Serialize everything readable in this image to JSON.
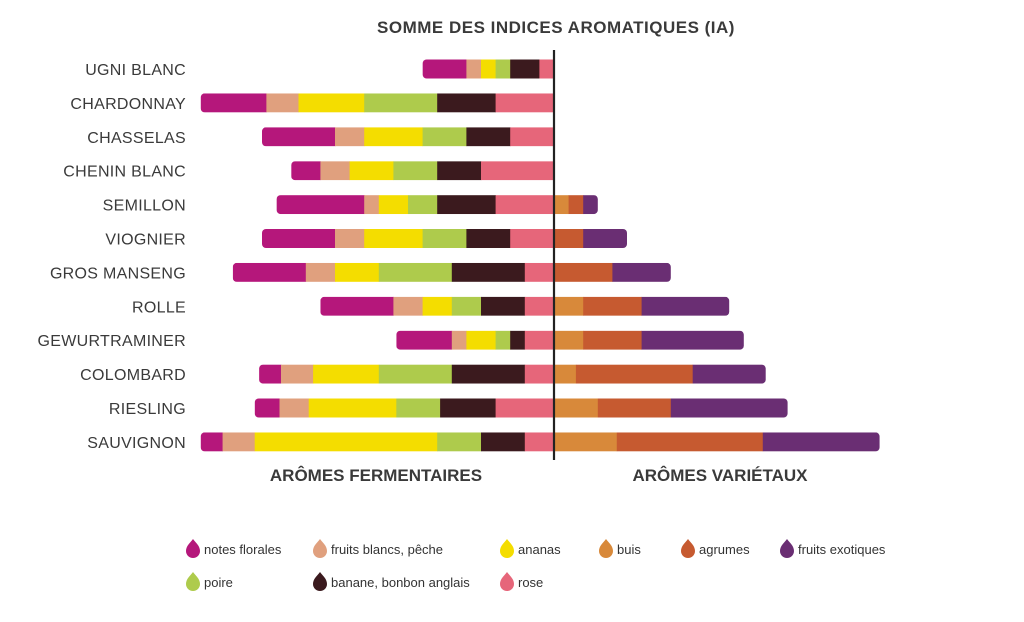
{
  "chart_data": {
    "type": "bar",
    "subtype": "diverging-stacked-horizontal",
    "title": "SOMME DES INDICES AROMATIQUES (IA)",
    "left_section_label": "ARÔMES FERMENTAIRES",
    "right_section_label": "ARÔMES VARIÉTAUX",
    "categories": [
      "UGNI BLANC",
      "CHARDONNAY",
      "CHASSELAS",
      "CHENIN BLANC",
      "SEMILLON",
      "VIOGNIER",
      "GROS MANSENG",
      "ROLLE",
      "GEWURTRAMINER",
      "COLOMBARD",
      "RIESLING",
      "SAUVIGNON"
    ],
    "series": [
      {
        "name": "notes florales",
        "side": "left",
        "color": "#b5177b",
        "values": [
          3.0,
          4.5,
          5.0,
          2.0,
          6.0,
          5.0,
          5.0,
          5.0,
          3.8,
          1.5,
          1.7,
          1.5
        ]
      },
      {
        "name": "fruits blancs, pêche",
        "side": "left",
        "color": "#e0a07e",
        "values": [
          1.0,
          2.2,
          2.0,
          2.0,
          1.0,
          2.0,
          2.0,
          2.0,
          1.0,
          2.2,
          2.0,
          2.2
        ]
      },
      {
        "name": "ananas",
        "side": "left",
        "color": "#f4dd00",
        "values": [
          1.0,
          4.5,
          4.0,
          3.0,
          2.0,
          4.0,
          3.0,
          2.0,
          2.0,
          4.5,
          6.0,
          12.5
        ]
      },
      {
        "name": "poire",
        "side": "left",
        "color": "#aecb4c",
        "values": [
          1.0,
          5.0,
          3.0,
          3.0,
          2.0,
          3.0,
          5.0,
          2.0,
          1.0,
          5.0,
          3.0,
          3.0
        ]
      },
      {
        "name": "banane, bonbon anglais",
        "side": "left",
        "color": "#3b1a1e",
        "values": [
          2.0,
          4.0,
          3.0,
          3.0,
          4.0,
          3.0,
          5.0,
          3.0,
          1.0,
          5.0,
          3.8,
          3.0
        ]
      },
      {
        "name": "rose",
        "side": "left",
        "color": "#e6667a",
        "values": [
          1.0,
          4.0,
          3.0,
          5.0,
          4.0,
          3.0,
          2.0,
          2.0,
          2.0,
          2.0,
          4.0,
          2.0
        ]
      },
      {
        "name": "buis",
        "side": "right",
        "color": "#d8893a",
        "values": [
          0,
          0,
          0,
          0,
          1.0,
          0,
          0,
          2.0,
          2.0,
          1.5,
          3.0,
          4.3
        ]
      },
      {
        "name": "agrumes",
        "side": "right",
        "color": "#c65a30",
        "values": [
          0,
          0,
          0,
          0,
          1.0,
          2.0,
          4.0,
          4.0,
          4.0,
          8.0,
          5.0,
          10.0
        ]
      },
      {
        "name": "fruits exotiques",
        "side": "right",
        "color": "#6a2e73",
        "values": [
          0,
          0,
          0,
          0,
          1.0,
          3.0,
          4.0,
          6.0,
          7.0,
          5.0,
          8.0,
          8.0
        ]
      }
    ],
    "legend_position": "bottom",
    "grid": false
  }
}
